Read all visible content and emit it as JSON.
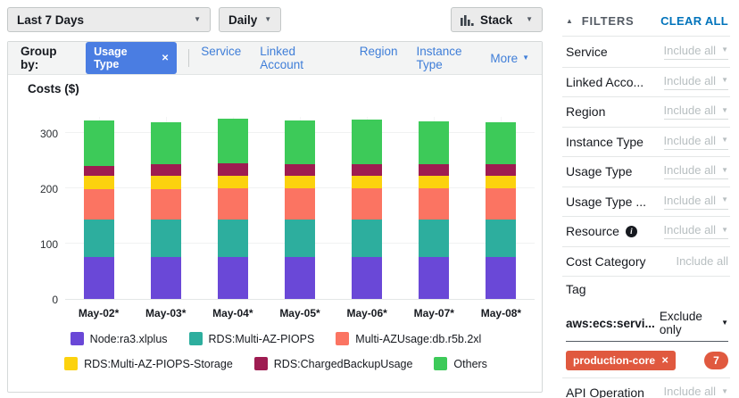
{
  "toolbar": {
    "date_range": "Last 7 Days",
    "granularity": "Daily",
    "chart_style": "Stack"
  },
  "group_by": {
    "label": "Group by:",
    "active_chip": "Usage Type",
    "options": [
      "Service",
      "Linked Account",
      "Region",
      "Instance Type"
    ],
    "more_label": "More"
  },
  "chart_data": {
    "type": "bar",
    "stacked": true,
    "title": "Costs ($)",
    "ylabel": "Costs ($)",
    "xlabel": "",
    "yticks": [
      0,
      100,
      200,
      300
    ],
    "ylim": [
      0,
      330
    ],
    "grid": true,
    "legend_position": "bottom",
    "categories": [
      "May-02*",
      "May-03*",
      "May-04*",
      "May-05*",
      "May-06*",
      "May-07*",
      "May-08*"
    ],
    "series": [
      {
        "name": "Node:ra3.xlplus",
        "color": "#6a48d7",
        "values": [
          76,
          76,
          76,
          76,
          76,
          76,
          76
        ]
      },
      {
        "name": "RDS:Multi-AZ-PIOPS",
        "color": "#2dae9e",
        "values": [
          67,
          67,
          67,
          67,
          67,
          67,
          67
        ]
      },
      {
        "name": "Multi-AZUsage:db.r5b.2xl",
        "color": "#fb7462",
        "values": [
          56,
          56,
          57,
          57,
          57,
          57,
          57
        ]
      },
      {
        "name": "RDS:Multi-AZ-PIOPS-Storage",
        "color": "#fcd20e",
        "values": [
          23,
          23,
          23,
          23,
          23,
          23,
          23
        ]
      },
      {
        "name": "RDS:ChargedBackupUsage",
        "color": "#9e1c51",
        "values": [
          18,
          21,
          22,
          21,
          21,
          21,
          21
        ]
      },
      {
        "name": "Others",
        "color": "#3dca59",
        "values": [
          82,
          76,
          81,
          79,
          80,
          77,
          76
        ]
      }
    ]
  },
  "filters": {
    "header": "FILTERS",
    "clear_all": "CLEAR ALL",
    "rows": [
      {
        "label": "Service",
        "value": "Include all",
        "caret": true,
        "info": false
      },
      {
        "label": "Linked Acco...",
        "value": "Include all",
        "caret": true,
        "info": false
      },
      {
        "label": "Region",
        "value": "Include all",
        "caret": true,
        "info": false
      },
      {
        "label": "Instance Type",
        "value": "Include all",
        "caret": true,
        "info": false
      },
      {
        "label": "Usage Type",
        "value": "Include all",
        "caret": true,
        "info": false
      },
      {
        "label": "Usage Type ...",
        "value": "Include all",
        "caret": true,
        "info": false
      },
      {
        "label": "Resource",
        "value": "Include all",
        "caret": true,
        "info": true
      },
      {
        "label": "Cost Category",
        "value": "Include all",
        "caret": false,
        "info": false
      },
      {
        "label": "Tag",
        "value": "",
        "caret": false,
        "info": false
      }
    ],
    "tag_filter": {
      "name": "aws:ecs:servi...",
      "mode": "Exclude only",
      "chip": "production-core",
      "count": "7"
    },
    "api_row": {
      "label": "API Operation",
      "value": "Include all",
      "caret": true
    }
  }
}
